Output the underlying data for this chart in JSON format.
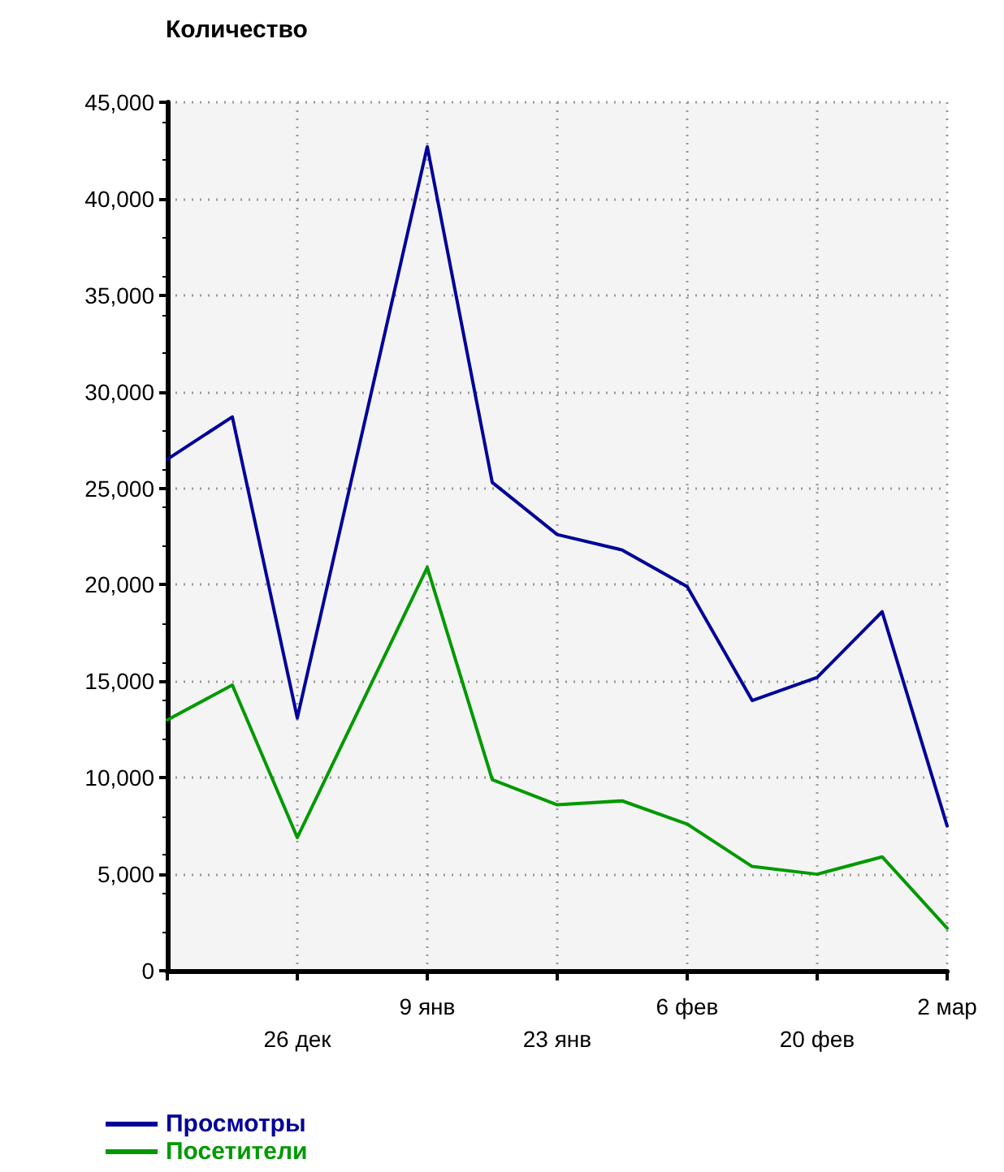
{
  "chart_data": {
    "type": "line",
    "ylabel": "Количество",
    "categories": [
      null,
      null,
      "26 дек",
      null,
      "9 янв",
      null,
      "23 янв",
      null,
      "6 фев",
      null,
      "20 фев",
      null,
      "2 мар"
    ],
    "series": [
      {
        "name": "Просмотры",
        "color": "#000099",
        "values": [
          26500,
          28700,
          13100,
          27900,
          42700,
          25300,
          22600,
          21800,
          19900,
          14000,
          15200,
          18600,
          7500
        ]
      },
      {
        "name": "Посетители",
        "color": "#009900",
        "values": [
          13000,
          14800,
          6900,
          13900,
          20900,
          9900,
          8600,
          8800,
          7600,
          5400,
          5000,
          5900,
          2200
        ]
      }
    ],
    "ylim": [
      0,
      45000
    ],
    "yticks": [
      {
        "value": 0,
        "label": "0"
      },
      {
        "value": 5000,
        "label": "5,000"
      },
      {
        "value": 10000,
        "label": "10,000"
      },
      {
        "value": 15000,
        "label": "15,000"
      },
      {
        "value": 20000,
        "label": "20,000"
      },
      {
        "value": 25000,
        "label": "25,000"
      },
      {
        "value": 30000,
        "label": "30,000"
      },
      {
        "value": 35000,
        "label": "35,000"
      },
      {
        "value": 40000,
        "label": "40,000"
      },
      {
        "value": 45000,
        "label": "45,000"
      }
    ],
    "grid": true,
    "legend": "bottom left",
    "marker": "none",
    "line_style": "solid"
  }
}
